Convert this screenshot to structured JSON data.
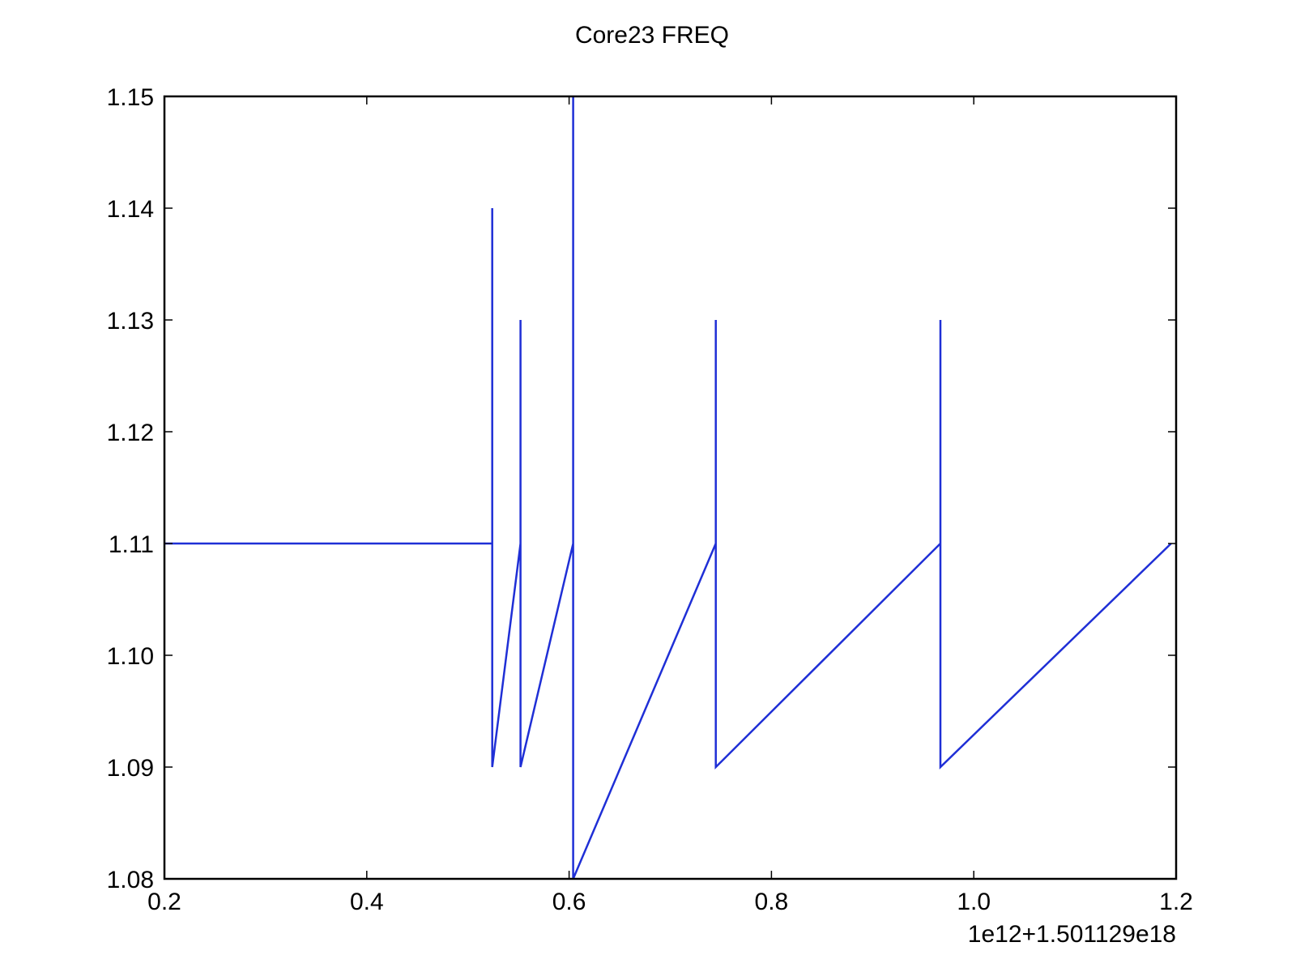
{
  "chart_data": {
    "type": "line",
    "title": "Core23 FREQ",
    "xlabel": "",
    "ylabel": "",
    "x_offset_label": "1e12+1.501129e18",
    "xlim": [
      0.2,
      1.2
    ],
    "ylim": [
      1.08,
      1.15
    ],
    "x_ticks": [
      0.2,
      0.4,
      0.6,
      0.8,
      1.0,
      1.2
    ],
    "x_tick_labels": [
      "0.2",
      "0.4",
      "0.6",
      "0.8",
      "1.0",
      "1.2"
    ],
    "y_ticks": [
      1.08,
      1.09,
      1.1,
      1.11,
      1.12,
      1.13,
      1.14,
      1.15
    ],
    "y_tick_labels": [
      "1.08",
      "1.09",
      "1.10",
      "1.11",
      "1.12",
      "1.13",
      "1.14",
      "1.15"
    ],
    "grid": false,
    "legend": "none",
    "series_color": "#1f2fd6",
    "series": [
      {
        "x": [
          0.2,
          0.524,
          0.524,
          0.524,
          0.552,
          0.552,
          0.552,
          0.604,
          0.604,
          0.604,
          0.745,
          0.745,
          0.745,
          0.967,
          0.967,
          0.967,
          1.195
        ],
        "y": [
          1.11,
          1.11,
          1.14,
          1.09,
          1.11,
          1.13,
          1.09,
          1.11,
          1.15,
          1.08,
          1.11,
          1.13,
          1.09,
          1.11,
          1.13,
          1.09,
          1.11
        ]
      }
    ]
  }
}
